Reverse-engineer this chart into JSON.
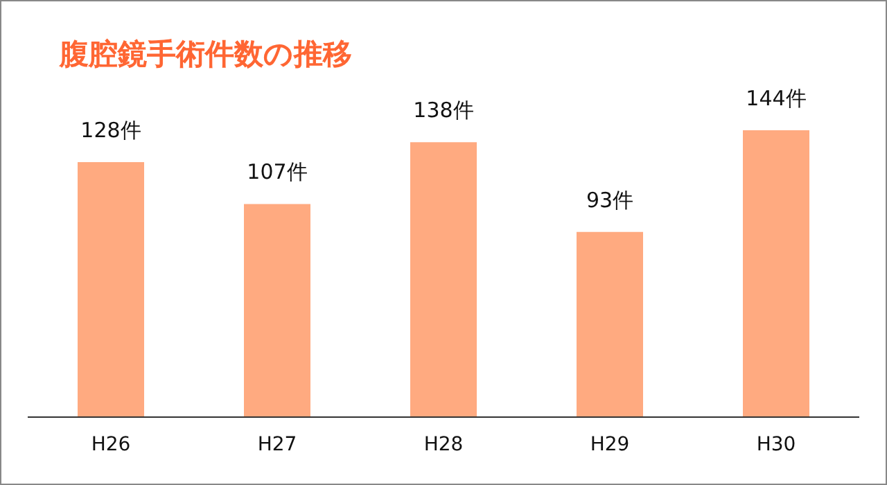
{
  "chart_data": {
    "type": "bar",
    "title": "腹腔鏡手術件数の推移",
    "categories": [
      "H26",
      "H27",
      "H28",
      "H29",
      "H30"
    ],
    "values": [
      128,
      107,
      138,
      93,
      144
    ],
    "value_labels": [
      "128件",
      "107件",
      "138件",
      "93件",
      "144件"
    ],
    "color": "#ffaa80",
    "grid": false,
    "legend": false
  }
}
